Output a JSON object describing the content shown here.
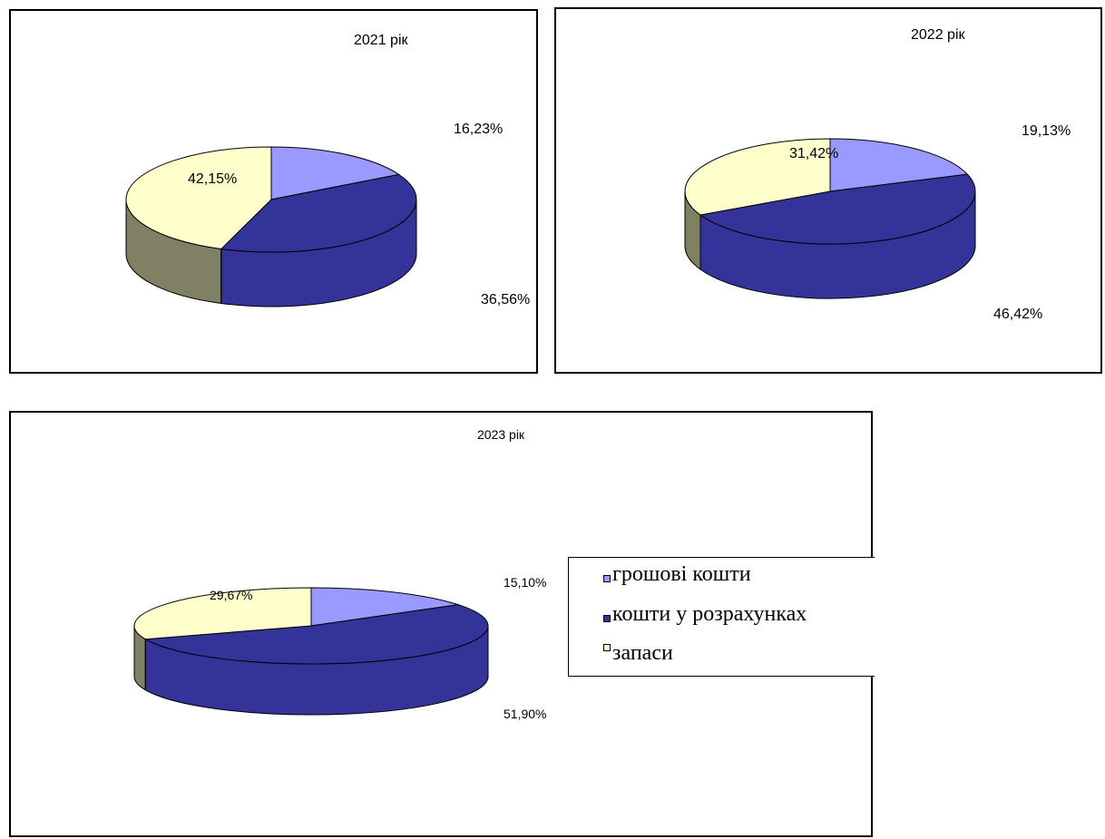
{
  "colors": {
    "hroshovi": "#9999ff",
    "koshty_u_rozrakhunkakh": "#333399",
    "zapasy": "#ffffcc",
    "zapasy_side": "#808064"
  },
  "chart_data": [
    {
      "type": "pie",
      "title": "2021 рік",
      "categories": [
        "грошові кошти",
        "кошти у розрахунках",
        "запаси"
      ],
      "values": [
        16.23,
        36.56,
        42.15
      ],
      "labels": [
        "16,23%",
        "36,56%",
        "42,15%"
      ],
      "style": "3d"
    },
    {
      "type": "pie",
      "title": "2022 рік",
      "categories": [
        "грошові кошти",
        "кошти у розрахунках",
        "запаси"
      ],
      "values": [
        19.13,
        46.42,
        31.42
      ],
      "labels": [
        "19,13%",
        "46,42%",
        "31,42%"
      ],
      "style": "3d"
    },
    {
      "type": "pie",
      "title": "2023 рік",
      "categories": [
        "грошові кошти",
        "кошти у розрахунках",
        "запаси"
      ],
      "values": [
        15.1,
        51.9,
        29.67
      ],
      "labels": [
        "15,10%",
        "51,90%",
        "29,67%"
      ],
      "style": "3d",
      "legend_position": "right"
    }
  ],
  "legend": {
    "items": [
      "грошові кошти",
      "кошти у розрахунках",
      "запаси"
    ]
  }
}
